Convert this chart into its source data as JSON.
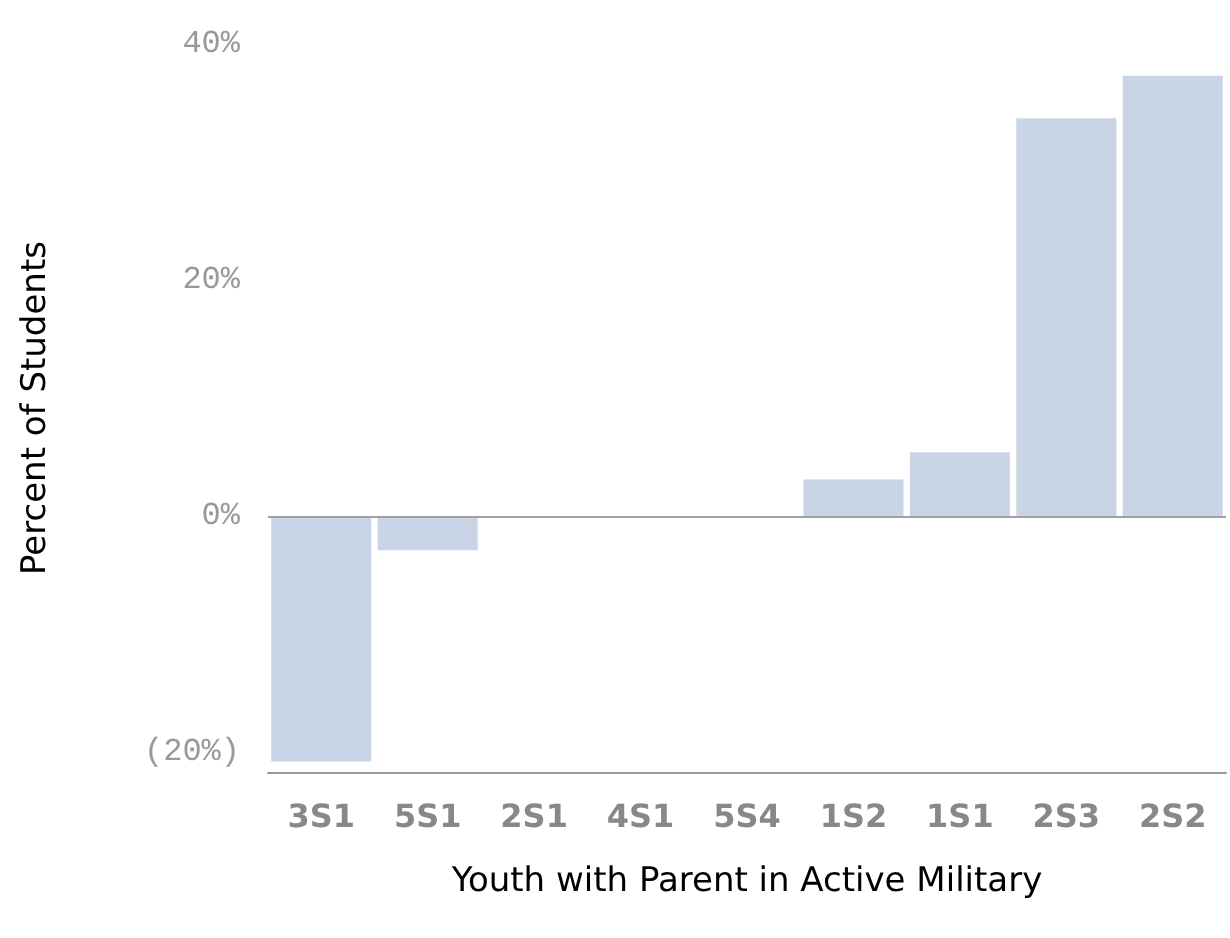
{
  "chart_data": {
    "type": "bar",
    "xlabel": "Youth with Parent in Active Military",
    "ylabel": "Percent of Students",
    "categories": [
      "3S1",
      "5S1",
      "2S1",
      "4S1",
      "5S4",
      "1S2",
      "1S1",
      "2S3",
      "2S2"
    ],
    "values": [
      -20.8,
      -2.9,
      0,
      0,
      0,
      3.1,
      5.4,
      33.7,
      37.3
    ],
    "color": "#c9d5e6",
    "ylim": [
      -21.7,
      40
    ],
    "yticks": [
      {
        "value": -20,
        "label": "(20%)"
      },
      {
        "value": 0,
        "label": "0%"
      },
      {
        "value": 20,
        "label": "20%"
      },
      {
        "value": 40,
        "label": "40%"
      }
    ],
    "ref_lines": [
      {
        "axis": "y",
        "value": 0,
        "color": "#a0a0a0"
      }
    ],
    "grid": false
  }
}
